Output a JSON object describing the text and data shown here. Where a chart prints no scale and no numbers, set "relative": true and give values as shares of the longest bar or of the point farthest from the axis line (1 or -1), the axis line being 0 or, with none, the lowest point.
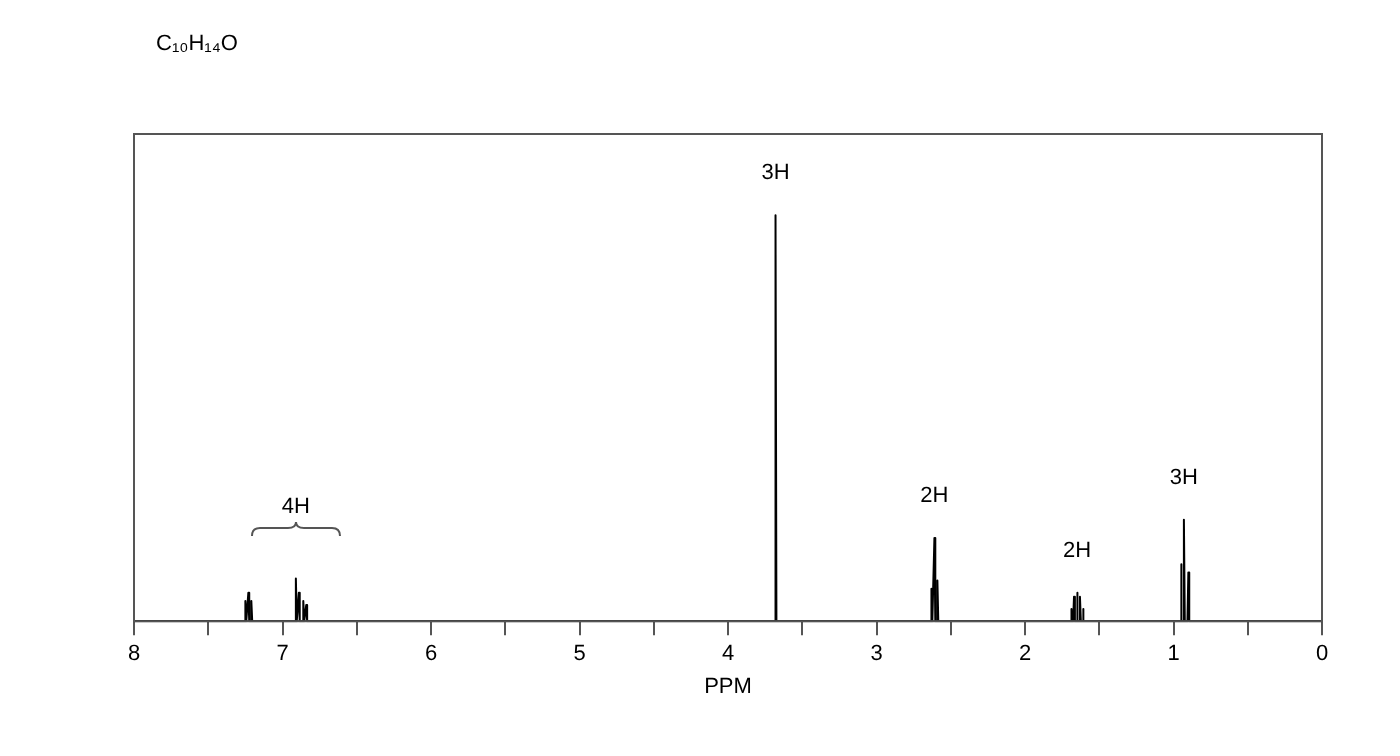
{
  "chart_data": {
    "type": "line",
    "title": "C₁₀H₁₄O",
    "xlabel": "PPM",
    "relative": true,
    "xlim": [
      8,
      0
    ],
    "xticks": [
      8,
      {
        "value": 7.5,
        "label": null
      },
      7,
      {
        "value": 6.5,
        "label": null
      },
      6,
      {
        "value": 5.5,
        "label": null
      },
      5,
      {
        "value": 4.5,
        "label": null
      },
      4,
      {
        "value": 3.5,
        "label": null
      },
      3,
      {
        "value": 2.5,
        "label": null
      },
      2,
      {
        "value": 1.5,
        "label": null
      },
      1,
      {
        "value": 0.5,
        "label": null
      },
      0
    ],
    "grid": false,
    "legend": false,
    "marker": "none",
    "line_style": "solid",
    "series": [
      {
        "color": "#000000",
        "x": [
          8,
          7.256,
          7.25,
          7.244,
          7.236,
          7.23,
          7.224,
          7.216,
          7.21,
          7.204,
          6.916,
          6.91,
          6.904,
          6.896,
          6.89,
          6.884,
          6.866,
          6.86,
          6.854,
          6.846,
          6.84,
          6.834,
          3.686,
          3.68,
          3.674,
          2.636,
          2.63,
          2.624,
          2.616,
          2.61,
          2.604,
          2.596,
          2.59,
          2.584,
          1.696,
          1.69,
          1.684,
          1.676,
          1.67,
          1.664,
          1.656,
          1.65,
          1.644,
          1.636,
          1.63,
          1.624,
          1.616,
          1.61,
          1.604,
          0.956,
          0.95,
          0.944,
          0.936,
          0.93,
          0.924,
          0.906,
          0.9,
          0.894,
          0
        ],
        "values": [
          0,
          0,
          0.05,
          0,
          0,
          0.07,
          0,
          0,
          0.05,
          0,
          0,
          0.105,
          0,
          0,
          0.07,
          0,
          0,
          0.05,
          0,
          0,
          0.04,
          0,
          0,
          1,
          0,
          0,
          0.08,
          0,
          0,
          0.205,
          0,
          0,
          0.1,
          0,
          0,
          0.03,
          0,
          0,
          0.06,
          0,
          0,
          0.07,
          0,
          0,
          0.06,
          0,
          0,
          0.03,
          0,
          0,
          0.14,
          0,
          0,
          0.25,
          0,
          0,
          0.12,
          0,
          0
        ]
      }
    ],
    "annotations": [
      {
        "text": "4H",
        "x": 6.91,
        "y": 0.105
      },
      {
        "text": "3H",
        "x": 3.68,
        "y": 1
      },
      {
        "text": "2H",
        "x": 2.61,
        "y": 0.205
      },
      {
        "text": "2H",
        "x": 1.65,
        "y": 0.07
      },
      {
        "text": "3H",
        "x": 0.93,
        "y": 0.25
      }
    ]
  }
}
